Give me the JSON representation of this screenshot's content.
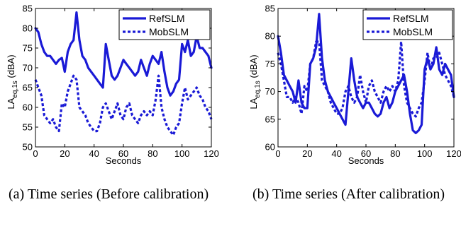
{
  "colors": {
    "series": "#1a1ad6",
    "frame": "#000000",
    "background": "#ffffff"
  },
  "captions": {
    "a": "(a) Time series (Before calibration)",
    "b": "(b) Time series (After calibration)"
  },
  "chart_data": [
    {
      "type": "line",
      "title": "",
      "xlabel": "Seconds",
      "ylabel": "LA",
      "ylabel_subscript": "eq,1s",
      "ylabel_unit": "(dBA)",
      "xlim": [
        0,
        120
      ],
      "ylim": [
        50,
        85
      ],
      "xticks": [
        0,
        20,
        40,
        60,
        80,
        100,
        120
      ],
      "yticks": [
        50,
        55,
        60,
        65,
        70,
        75,
        80,
        85
      ],
      "grid": false,
      "legend_position": "top-right",
      "series": [
        {
          "name": "RefSLM",
          "style": "solid",
          "x": [
            0,
            2,
            4,
            6,
            8,
            10,
            12,
            14,
            16,
            18,
            20,
            22,
            24,
            26,
            28,
            30,
            32,
            34,
            36,
            38,
            40,
            42,
            44,
            46,
            48,
            50,
            52,
            54,
            56,
            58,
            60,
            62,
            64,
            66,
            68,
            70,
            72,
            74,
            76,
            78,
            80,
            82,
            84,
            86,
            88,
            90,
            92,
            94,
            96,
            98,
            100,
            102,
            104,
            106,
            108,
            110,
            112,
            114,
            116,
            118,
            120
          ],
          "values": [
            80,
            79,
            76,
            74,
            73,
            73,
            72,
            71,
            72,
            72.5,
            69,
            74,
            76,
            77,
            84,
            77,
            73,
            72,
            70,
            69,
            68,
            67,
            66,
            65,
            76,
            72,
            68,
            67,
            68,
            70,
            72,
            71,
            70,
            69,
            68,
            69,
            72,
            70,
            68,
            71,
            73,
            72,
            71,
            74,
            69,
            65,
            63,
            64,
            66,
            67,
            76,
            74,
            77,
            73,
            74,
            78,
            75,
            75,
            74,
            73,
            70
          ]
        },
        {
          "name": "MobSLM",
          "style": "dashed",
          "x": [
            0,
            2,
            4,
            6,
            8,
            10,
            12,
            14,
            16,
            18,
            20,
            22,
            24,
            26,
            28,
            30,
            32,
            34,
            36,
            38,
            40,
            42,
            44,
            46,
            48,
            50,
            52,
            54,
            56,
            58,
            60,
            62,
            64,
            66,
            68,
            70,
            72,
            74,
            76,
            78,
            80,
            82,
            84,
            86,
            88,
            90,
            92,
            94,
            96,
            98,
            100,
            102,
            104,
            106,
            108,
            110,
            112,
            114,
            116,
            118,
            120
          ],
          "values": [
            67,
            65,
            63,
            58,
            57,
            56,
            57,
            55,
            54,
            61,
            60,
            64,
            66,
            68,
            67,
            60,
            59,
            58,
            56,
            55,
            54,
            54,
            56,
            60,
            61,
            59,
            57,
            59,
            61,
            58,
            57,
            60,
            61,
            58,
            57,
            56,
            58,
            59,
            58,
            59,
            58,
            62,
            68,
            60,
            57,
            55,
            54,
            53,
            55,
            56,
            61,
            65,
            62,
            63,
            64,
            65,
            63,
            62,
            60,
            59,
            57
          ]
        }
      ]
    },
    {
      "type": "line",
      "title": "",
      "xlabel": "Seconds",
      "ylabel": "LA",
      "ylabel_subscript": "eq,1s",
      "ylabel_unit": "(dBA)",
      "xlim": [
        0,
        120
      ],
      "ylim": [
        60,
        85
      ],
      "xticks": [
        0,
        20,
        40,
        60,
        80,
        100,
        120
      ],
      "yticks": [
        60,
        65,
        70,
        75,
        80,
        85
      ],
      "grid": false,
      "legend_position": "top-right",
      "series": [
        {
          "name": "RefSLM",
          "style": "solid",
          "x": [
            0,
            2,
            4,
            6,
            8,
            10,
            12,
            14,
            16,
            18,
            20,
            22,
            24,
            26,
            28,
            30,
            32,
            34,
            36,
            38,
            40,
            42,
            44,
            46,
            48,
            50,
            52,
            54,
            56,
            58,
            60,
            62,
            64,
            66,
            68,
            70,
            72,
            74,
            76,
            78,
            80,
            82,
            84,
            86,
            88,
            90,
            92,
            94,
            96,
            98,
            100,
            102,
            104,
            106,
            108,
            110,
            112,
            114,
            116,
            118,
            120
          ],
          "values": [
            80,
            77,
            73,
            72,
            71,
            70,
            68,
            72,
            68,
            67,
            67,
            75,
            76,
            78,
            84,
            76,
            72,
            70,
            69,
            68,
            67,
            66,
            65,
            64,
            70,
            76,
            72,
            69,
            68,
            67,
            68,
            68,
            67,
            66,
            65.5,
            66,
            68,
            69,
            67,
            68,
            70,
            71,
            72,
            73,
            70,
            66,
            63,
            62.5,
            63,
            64,
            74,
            76,
            74,
            75,
            78,
            74,
            73,
            75,
            74,
            73,
            69
          ]
        },
        {
          "name": "MobSLM",
          "style": "dashed",
          "x": [
            0,
            2,
            4,
            6,
            8,
            10,
            12,
            14,
            16,
            18,
            20,
            22,
            24,
            26,
            28,
            30,
            32,
            34,
            36,
            38,
            40,
            42,
            44,
            46,
            48,
            50,
            52,
            54,
            56,
            58,
            60,
            62,
            64,
            66,
            68,
            70,
            72,
            74,
            76,
            78,
            80,
            82,
            84,
            86,
            88,
            90,
            92,
            94,
            96,
            98,
            100,
            102,
            104,
            106,
            108,
            110,
            112,
            114,
            116,
            118,
            120
          ],
          "values": [
            77,
            75,
            72,
            69,
            69,
            68,
            69,
            68,
            66,
            71,
            70,
            75,
            76,
            79,
            79,
            72,
            71,
            70,
            68,
            67,
            66,
            66,
            67,
            70,
            71,
            69,
            68,
            69,
            73,
            70,
            68,
            71,
            72,
            70,
            69,
            68,
            70,
            71,
            70,
            71,
            70,
            72,
            79,
            71,
            68,
            67,
            66,
            65.5,
            67,
            68,
            72,
            77,
            74,
            76,
            76,
            77,
            75,
            73,
            72,
            71,
            69
          ]
        }
      ]
    }
  ]
}
